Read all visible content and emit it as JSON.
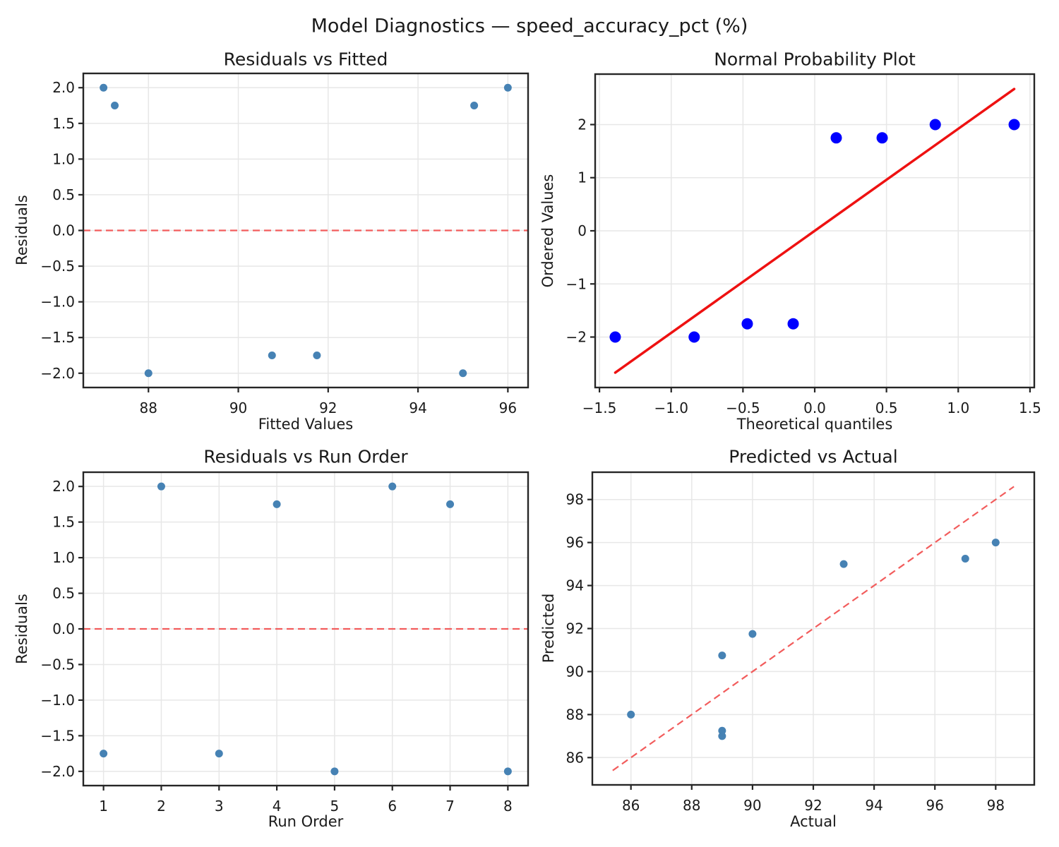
{
  "figure": {
    "suptitle": "Model Diagnostics — speed_accuracy_pct (%)"
  },
  "colors": {
    "grid": "#e7e7e7",
    "spine": "#262626",
    "text": "#1a1a1a",
    "residual_dot": "#4682b4",
    "probability_dot": "#0000ff",
    "fit_line_red": "#ee1111",
    "reference_dashed_red": "#f25c5c",
    "background": "#ffffff"
  },
  "chart_data": [
    {
      "id": "residuals-vs-fitted",
      "type": "scatter",
      "title": "Residuals vs Fitted",
      "xlabel": "Fitted Values",
      "ylabel": "Residuals",
      "xlim": [
        86.55,
        96.45
      ],
      "ylim": [
        -2.2,
        2.2
      ],
      "grid": true,
      "xticks": {
        "values": [
          88,
          90,
          92,
          94,
          96
        ],
        "labels": [
          "88",
          "90",
          "92",
          "94",
          "96"
        ]
      },
      "yticks": {
        "values": [
          -2.0,
          -1.5,
          -1.0,
          -0.5,
          0.0,
          0.5,
          1.0,
          1.5,
          2.0
        ],
        "labels": [
          "−2.0",
          "−1.5",
          "−1.0",
          "−0.5",
          "0.0",
          "0.5",
          "1.0",
          "1.5",
          "2.0"
        ]
      },
      "points": [
        [
          87.0,
          2.0
        ],
        [
          87.25,
          1.75
        ],
        [
          88.0,
          -2.0
        ],
        [
          90.75,
          -1.75
        ],
        [
          91.75,
          -1.75
        ],
        [
          95.0,
          -2.0
        ],
        [
          95.25,
          1.75
        ],
        [
          96.0,
          2.0
        ]
      ],
      "marker": {
        "color": "#4682b4",
        "radius": 5.5
      },
      "zero_line": {
        "y": 0.0,
        "color": "#f25c5c",
        "style": "dashed",
        "width": 2.2
      }
    },
    {
      "id": "normal-probability",
      "type": "scatter",
      "title": "Normal Probability Plot",
      "xlabel": "Theoretical quantiles",
      "ylabel": "Ordered Values",
      "xlim": [
        -1.53,
        1.53
      ],
      "ylim": [
        -2.95,
        2.95
      ],
      "grid": true,
      "xticks": {
        "values": [
          -1.5,
          -1.0,
          -0.5,
          0.0,
          0.5,
          1.0,
          1.5
        ],
        "labels": [
          "−1.5",
          "−1.0",
          "−0.5",
          "0.0",
          "0.5",
          "1.0",
          "1.5"
        ]
      },
      "yticks": {
        "values": [
          -2,
          -1,
          0,
          1,
          2
        ],
        "labels": [
          "−2",
          "−1",
          "0",
          "1",
          "2"
        ]
      },
      "points": [
        [
          -1.39,
          -2.0
        ],
        [
          -0.84,
          -2.0
        ],
        [
          -0.47,
          -1.75
        ],
        [
          -0.15,
          -1.75
        ],
        [
          0.15,
          1.75
        ],
        [
          0.47,
          1.75
        ],
        [
          0.84,
          2.0
        ],
        [
          1.39,
          2.0
        ]
      ],
      "marker": {
        "color": "#0000ff",
        "radius": 8
      },
      "fit_line": {
        "x": [
          -1.39,
          1.39
        ],
        "y": [
          -2.67,
          2.67
        ],
        "color": "#ee1111",
        "style": "solid",
        "width": 3.5
      }
    },
    {
      "id": "residuals-vs-run-order",
      "type": "scatter",
      "title": "Residuals vs Run Order",
      "xlabel": "Run Order",
      "ylabel": "Residuals",
      "xlim": [
        0.65,
        8.35
      ],
      "ylim": [
        -2.2,
        2.2
      ],
      "grid": true,
      "xticks": {
        "values": [
          1,
          2,
          3,
          4,
          5,
          6,
          7,
          8
        ],
        "labels": [
          "1",
          "2",
          "3",
          "4",
          "5",
          "6",
          "7",
          "8"
        ]
      },
      "yticks": {
        "values": [
          -2.0,
          -1.5,
          -1.0,
          -0.5,
          0.0,
          0.5,
          1.0,
          1.5,
          2.0
        ],
        "labels": [
          "−2.0",
          "−1.5",
          "−1.0",
          "−0.5",
          "0.0",
          "0.5",
          "1.0",
          "1.5",
          "2.0"
        ]
      },
      "points": [
        [
          1,
          -1.75
        ],
        [
          2,
          2.0
        ],
        [
          3,
          -1.75
        ],
        [
          4,
          1.75
        ],
        [
          5,
          -2.0
        ],
        [
          6,
          2.0
        ],
        [
          7,
          1.75
        ],
        [
          8,
          -2.0
        ]
      ],
      "marker": {
        "color": "#4682b4",
        "radius": 5.5
      },
      "zero_line": {
        "y": 0.0,
        "color": "#f25c5c",
        "style": "dashed",
        "width": 2.2
      }
    },
    {
      "id": "predicted-vs-actual",
      "type": "scatter",
      "title": "Predicted vs Actual",
      "xlabel": "Actual",
      "ylabel": "Predicted",
      "xlim": [
        84.73,
        99.27
      ],
      "ylim": [
        84.73,
        99.27
      ],
      "grid": true,
      "xticks": {
        "values": [
          86,
          88,
          90,
          92,
          94,
          96,
          98
        ],
        "labels": [
          "86",
          "88",
          "90",
          "92",
          "94",
          "96",
          "98"
        ]
      },
      "yticks": {
        "values": [
          86,
          88,
          90,
          92,
          94,
          96,
          98
        ],
        "labels": [
          "86",
          "88",
          "90",
          "92",
          "94",
          "96",
          "98"
        ]
      },
      "points": [
        [
          86,
          88.0
        ],
        [
          89,
          87.0
        ],
        [
          89,
          87.25
        ],
        [
          89,
          90.75
        ],
        [
          90,
          91.75
        ],
        [
          93,
          95.0
        ],
        [
          97,
          95.25
        ],
        [
          98,
          96.0
        ]
      ],
      "marker": {
        "color": "#4682b4",
        "radius": 5.5
      },
      "identity_line": {
        "x": [
          85.4,
          98.6
        ],
        "y": [
          85.4,
          98.6
        ],
        "color": "#f25c5c",
        "style": "dashed",
        "width": 2.2
      }
    }
  ]
}
